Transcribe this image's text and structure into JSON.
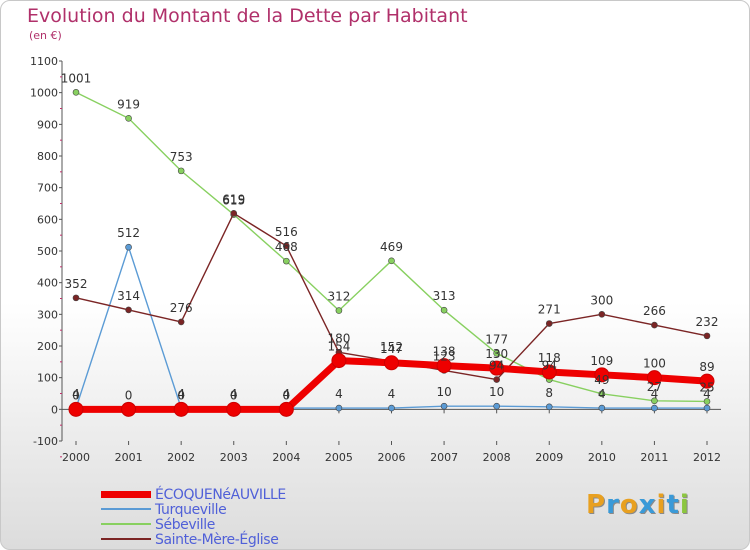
{
  "title": "Evolution du Montant de la Dette par Habitant",
  "subtitle": "(en €)",
  "logo": {
    "text": "Proxiti",
    "colors": [
      "#e8a020",
      "#3a9ad8",
      "#e8a020",
      "#3a9ad8",
      "#e8a020",
      "#3a9ad8",
      "#8cc63f"
    ]
  },
  "chart_data": {
    "type": "line",
    "x": [
      2000,
      2001,
      2002,
      2003,
      2004,
      2005,
      2006,
      2007,
      2008,
      2009,
      2010,
      2011,
      2012
    ],
    "ylim": [
      -100,
      1100
    ],
    "yticks": [
      -100,
      0,
      100,
      200,
      300,
      400,
      500,
      600,
      700,
      800,
      900,
      1000,
      1100
    ],
    "grid": false,
    "legend_position": "bottom-left",
    "series": [
      {
        "name": "ÉCOQUENéAUVILLE",
        "color": "#ee0000",
        "width": 7,
        "marker": 7,
        "values": [
          0,
          0,
          0,
          0,
          0,
          154,
          147,
          138,
          130,
          118,
          109,
          100,
          89
        ],
        "labels": [
          "0",
          "0",
          "0",
          "0",
          "0",
          "154",
          "147",
          "138",
          "130",
          "118",
          "109",
          "100",
          "89"
        ]
      },
      {
        "name": "Turqueville",
        "color": "#5b9bd5",
        "width": 1.4,
        "marker": 3,
        "values": [
          4,
          512,
          4,
          4,
          4,
          4,
          4,
          10,
          10,
          8,
          4,
          4,
          4
        ],
        "labels": [
          "4",
          "512",
          "4",
          "4",
          "4",
          "4",
          "4",
          "10",
          "10",
          "8",
          "4",
          "4",
          "4"
        ]
      },
      {
        "name": "Sébeville",
        "color": "#88d060",
        "width": 1.4,
        "marker": 3,
        "values": [
          1001,
          919,
          753,
          615,
          468,
          312,
          469,
          313,
          177,
          94,
          49,
          27,
          25
        ],
        "labels": [
          "1001",
          "919",
          "753",
          "615",
          "468",
          "312",
          "469",
          "313",
          "177",
          "94",
          "49",
          "27",
          "25"
        ]
      },
      {
        "name": "Sainte-Mère-Église",
        "color": "#7b2525",
        "width": 1.4,
        "marker": 3,
        "values": [
          352,
          314,
          276,
          619,
          516,
          180,
          152,
          123,
          94,
          271,
          300,
          266,
          232
        ],
        "labels": [
          "352",
          "314",
          "276",
          "619",
          "516",
          "180",
          "152",
          "123",
          "94",
          "271",
          "300",
          "266",
          "232"
        ]
      }
    ]
  }
}
